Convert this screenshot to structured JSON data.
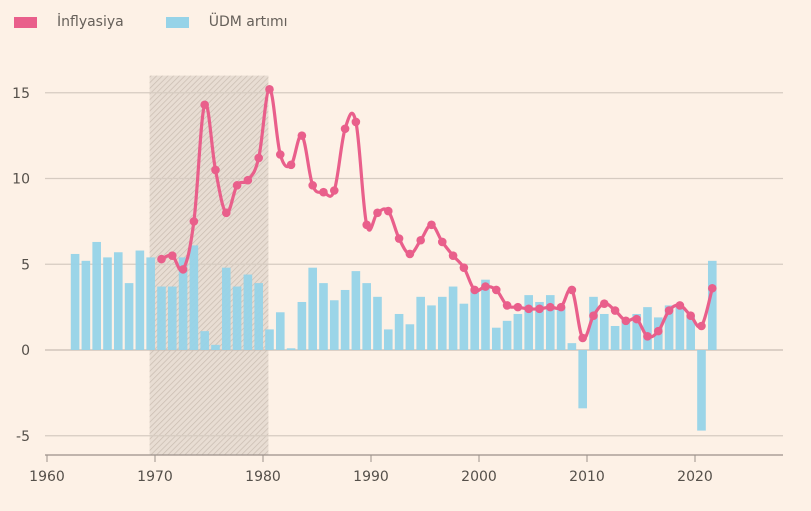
{
  "chart_data": {
    "type": "bar+line",
    "title": "",
    "xlabel": "",
    "ylabel": "",
    "xlim": [
      1959,
      2025.5
    ],
    "ylim": [
      -6,
      16
    ],
    "grid": true,
    "legend_position": "top-left",
    "x_ticks": [
      1960,
      1970,
      1980,
      1990,
      2000,
      2010,
      2020
    ],
    "y_ticks": [
      -5,
      0,
      5,
      10,
      15
    ],
    "shaded_region": {
      "from": 1969.5,
      "to": 1980.5,
      "label": ""
    },
    "series": [
      {
        "name": "İnflyasiya",
        "type": "line",
        "color": "#e95f8b",
        "x": [
          1970,
          1971,
          1972,
          1973,
          1974,
          1975,
          1976,
          1977,
          1978,
          1979,
          1980,
          1981,
          1982,
          1983,
          1984,
          1985,
          1986,
          1987,
          1988,
          1989,
          1990,
          1991,
          1992,
          1993,
          1994,
          1995,
          1996,
          1997,
          1998,
          1999,
          2000,
          2001,
          2002,
          2003,
          2004,
          2005,
          2006,
          2007,
          2008,
          2009,
          2010,
          2011,
          2012,
          2013,
          2014,
          2015,
          2016,
          2017,
          2018,
          2019,
          2020,
          2021
        ],
        "values": [
          5.3,
          5.5,
          4.7,
          7.5,
          14.3,
          10.5,
          8.0,
          9.6,
          9.9,
          11.2,
          15.2,
          11.4,
          10.8,
          12.5,
          9.6,
          9.2,
          9.3,
          12.9,
          13.3,
          7.3,
          8.0,
          8.1,
          6.5,
          5.6,
          6.4,
          7.3,
          6.3,
          5.5,
          4.8,
          3.5,
          3.7,
          3.5,
          2.6,
          2.5,
          2.4,
          2.4,
          2.5,
          2.5,
          3.5,
          0.7,
          2.0,
          2.7,
          2.3,
          1.7,
          1.8,
          0.8,
          1.1,
          2.3,
          2.6,
          2.0,
          1.4,
          3.6
        ]
      },
      {
        "name": "ÜDM artımı",
        "type": "bar",
        "color": "#96d3e8",
        "x": [
          1962,
          1963,
          1964,
          1965,
          1966,
          1967,
          1968,
          1969,
          1970,
          1971,
          1972,
          1973,
          1974,
          1975,
          1976,
          1977,
          1978,
          1979,
          1980,
          1981,
          1982,
          1983,
          1984,
          1985,
          1986,
          1987,
          1988,
          1989,
          1990,
          1991,
          1992,
          1993,
          1994,
          1995,
          1996,
          1997,
          1998,
          1999,
          2000,
          2001,
          2002,
          2003,
          2004,
          2005,
          2006,
          2007,
          2008,
          2009,
          2010,
          2011,
          2012,
          2013,
          2014,
          2015,
          2016,
          2017,
          2018,
          2019,
          2020,
          2021
        ],
        "values": [
          5.6,
          5.2,
          6.3,
          5.4,
          5.7,
          3.9,
          5.8,
          5.4,
          3.7,
          3.7,
          5.4,
          6.1,
          1.1,
          0.3,
          4.8,
          3.7,
          4.4,
          3.9,
          1.2,
          2.2,
          0.1,
          2.8,
          4.8,
          3.9,
          2.9,
          3.5,
          4.6,
          3.9,
          3.1,
          1.2,
          2.1,
          1.5,
          3.1,
          2.6,
          3.1,
          3.7,
          2.7,
          3.5,
          4.1,
          1.3,
          1.7,
          2.1,
          3.2,
          2.8,
          3.2,
          2.5,
          0.4,
          -3.4,
          3.1,
          2.1,
          1.4,
          1.8,
          2.1,
          2.5,
          1.9,
          2.6,
          2.5,
          2.0,
          -4.7,
          5.2
        ]
      }
    ]
  },
  "legend": {
    "items": [
      {
        "label": "İnflyasiya",
        "color": "#e95f8b"
      },
      {
        "label": "ÜDM artımı",
        "color": "#96d3e8"
      }
    ]
  }
}
